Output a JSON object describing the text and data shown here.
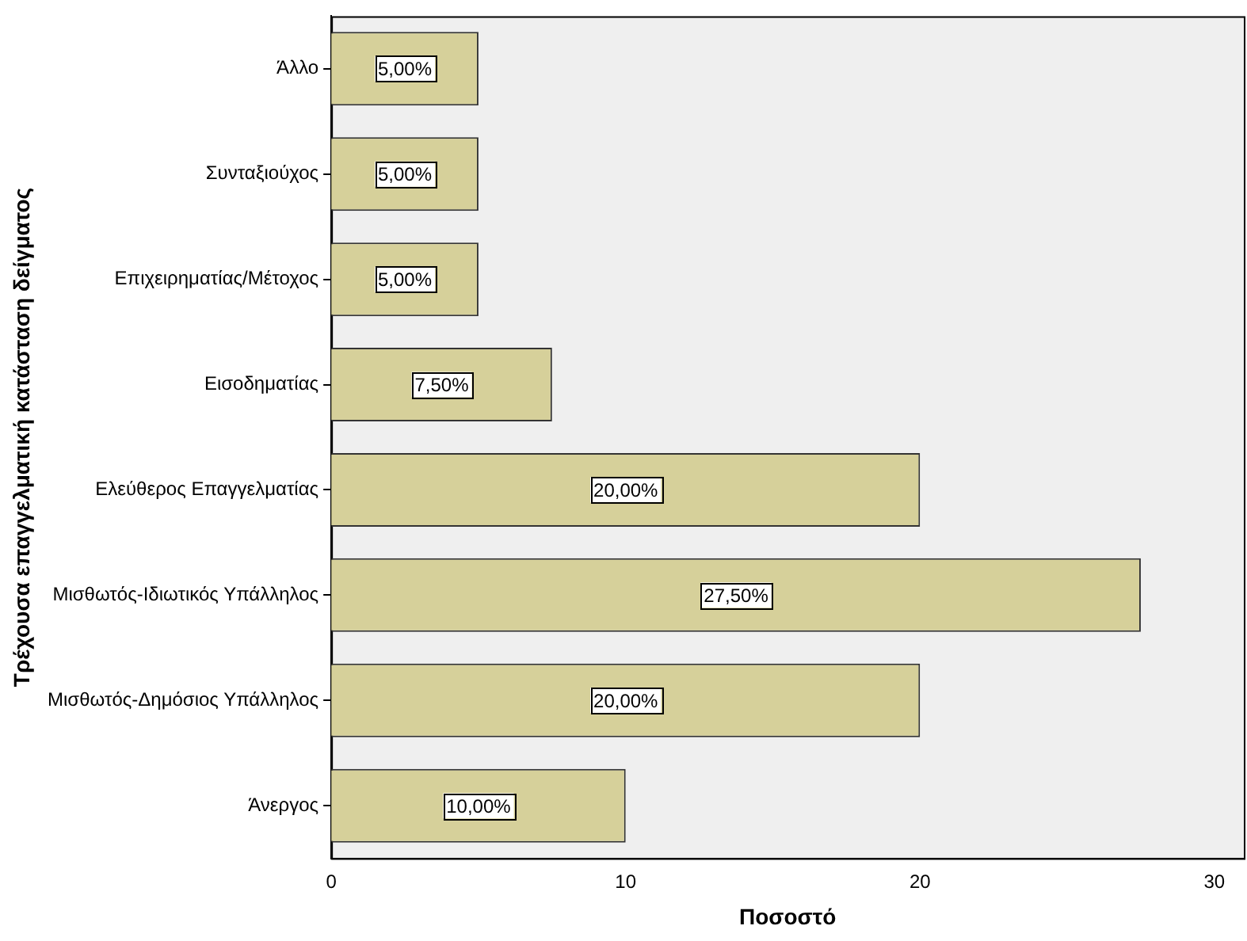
{
  "chart_data": {
    "type": "bar",
    "orientation": "horizontal",
    "xlabel": "Ποσοστό",
    "ylabel": "Τρέχουσα επαγγελματική κατάσταση δείγματος",
    "categories": [
      "Άλλο",
      "Συνταξιούχος",
      "Επιχειρηματίας/Μέτοχος",
      "Εισοδηματίας",
      "Ελεύθερος Επαγγελματίας",
      "Μισθωτός-Ιδιωτικός Υπάλληλος",
      "Μισθωτός-Δημόσιος Υπάλληλος",
      "Άνεργος"
    ],
    "values": [
      5,
      5,
      5,
      7.5,
      20,
      27.5,
      20,
      10
    ],
    "value_labels": [
      "5,00%",
      "5,00%",
      "5,00%",
      "7,50%",
      "20,00%",
      "27,50%",
      "20,00%",
      "10,00%"
    ],
    "color": "#d6d09a",
    "xlim": [
      0,
      31
    ],
    "xticks": [
      0,
      10,
      20,
      30
    ],
    "grid": false,
    "legend": false
  }
}
